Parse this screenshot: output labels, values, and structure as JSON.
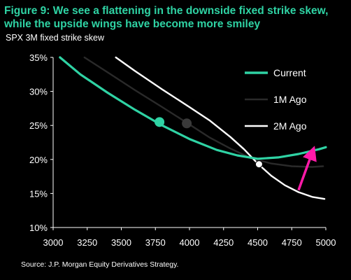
{
  "header": {
    "title": "Figure 9: We see a flattening in the downside fixed strike skew, while the upside wings have become more smiley",
    "subtitle": "SPX 3M fixed strike skew"
  },
  "footer": {
    "source": "Source: J.P. Morgan Equity Derivatives Strategy."
  },
  "colors": {
    "current": "#2fd3a4",
    "one_month": "#2a2a2a",
    "two_month": "#ffffff",
    "arrow": "#ff1aa8"
  },
  "chart_data": {
    "type": "line",
    "title": "SPX 3M fixed strike skew",
    "xlim": [
      3000,
      5000
    ],
    "ylim": [
      10,
      35
    ],
    "x_ticks": [
      3000,
      3250,
      3500,
      3750,
      4000,
      4250,
      4500,
      4750,
      5000
    ],
    "y_ticks": [
      10,
      15,
      20,
      25,
      30,
      35
    ],
    "y_tick_format": "percent",
    "legend_position": "top-right",
    "series": [
      {
        "name": "Current",
        "color": "#2fd3a4",
        "x": [
          3050,
          3200,
          3400,
          3600,
          3800,
          4000,
          4200,
          4350,
          4500,
          4650,
          4800,
          4950,
          5000
        ],
        "y": [
          35.0,
          32.5,
          29.8,
          27.3,
          25.0,
          23.0,
          21.4,
          20.6,
          20.1,
          20.3,
          20.8,
          21.5,
          21.8
        ],
        "marker": {
          "x": 3780,
          "y": 25.5
        }
      },
      {
        "name": "1M Ago",
        "color": "#2a2a2a",
        "x": [
          3230,
          3400,
          3600,
          3800,
          3980,
          4150,
          4300,
          4450,
          4600,
          4750,
          4900,
          4980
        ],
        "y": [
          35.0,
          32.8,
          30.2,
          27.7,
          25.4,
          23.2,
          21.6,
          20.2,
          19.4,
          19.0,
          18.9,
          19.0
        ],
        "marker": {
          "x": 3980,
          "y": 25.3
        }
      },
      {
        "name": "2M Ago",
        "color": "#ffffff",
        "x": [
          3460,
          3600,
          3800,
          4000,
          4150,
          4300,
          4400,
          4500,
          4600,
          4700,
          4800,
          4900,
          4990
        ],
        "y": [
          35.0,
          33.0,
          30.3,
          27.7,
          25.7,
          23.3,
          21.5,
          19.4,
          17.6,
          16.2,
          15.2,
          14.5,
          14.2
        ],
        "marker": {
          "x": 4510,
          "y": 19.3
        }
      }
    ],
    "annotation": {
      "type": "arrow",
      "color": "#ff1aa8",
      "from": {
        "x": 4800,
        "y": 15.5
      },
      "to": {
        "x": 4900,
        "y": 21.0
      }
    }
  }
}
